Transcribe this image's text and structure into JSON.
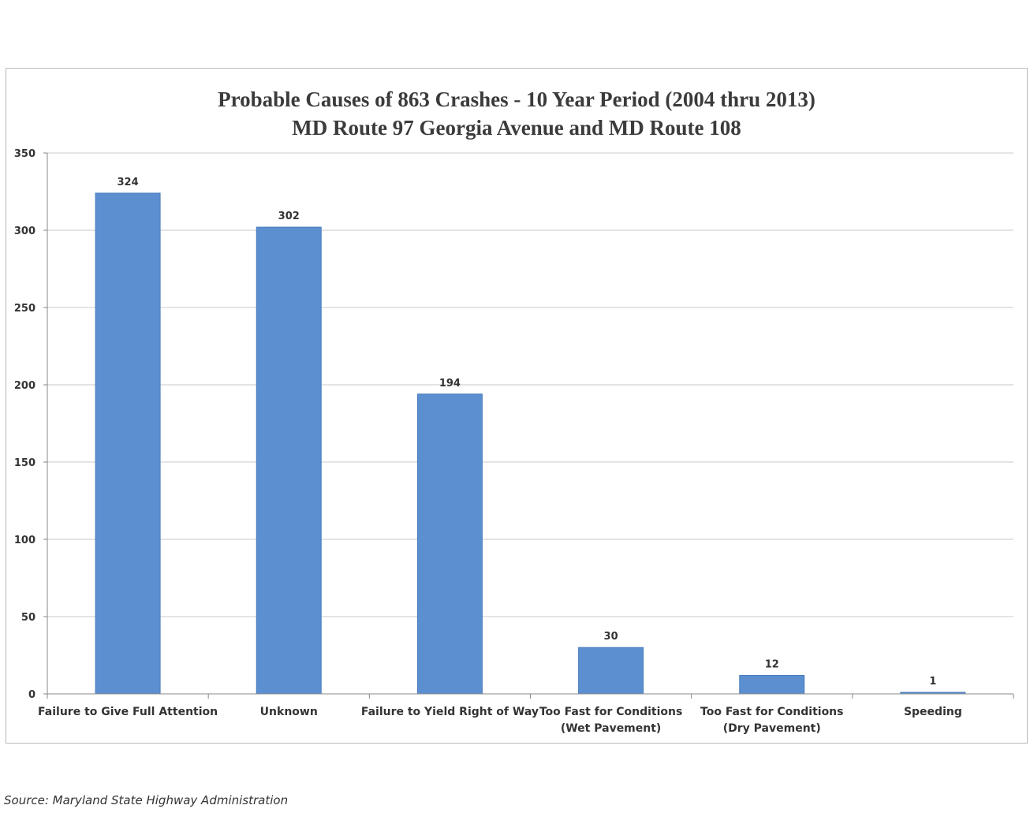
{
  "chart_data": {
    "type": "bar",
    "title": [
      "Probable Causes of 863 Crashes - 10 Year Period (2004 thru 2013)",
      "MD Route 97 Georgia Avenue and MD Route 108"
    ],
    "categories": [
      [
        "Failure to Give Full Attention"
      ],
      [
        "Unknown"
      ],
      [
        "Failure to Yield Right of Way"
      ],
      [
        "Too Fast for Conditions",
        "(Wet Pavement)"
      ],
      [
        "Too Fast for Conditions",
        "(Dry Pavement)"
      ],
      [
        "Speeding"
      ]
    ],
    "values": [
      324,
      302,
      194,
      30,
      12,
      1
    ],
    "ylim": [
      0,
      350
    ],
    "yticks": [
      0,
      50,
      100,
      150,
      200,
      250,
      300,
      350
    ],
    "xlabel": "",
    "ylabel": "",
    "grid": true,
    "bar_color": "#5b8fd0",
    "bar_edge_color": "#4a7dbd"
  },
  "source": "Source: Maryland State Highway Administration"
}
